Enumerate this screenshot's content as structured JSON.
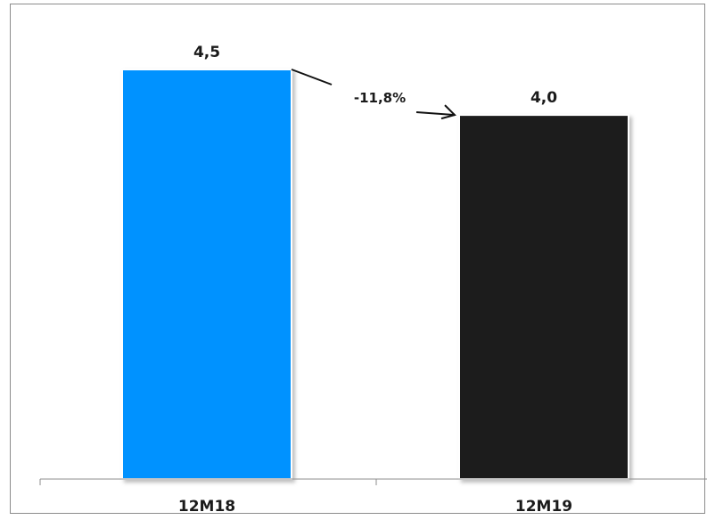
{
  "chart_data": {
    "type": "bar",
    "categories": [
      "12M18",
      "12M19"
    ],
    "values": [
      4.5,
      4.0
    ],
    "value_labels": [
      "4,5",
      "4,0"
    ],
    "colors": [
      "#0092ff",
      "#1e1e1e"
    ],
    "annotation": "-11,8%",
    "ylim": [
      0,
      4.5
    ],
    "grid": false,
    "legend": false
  }
}
